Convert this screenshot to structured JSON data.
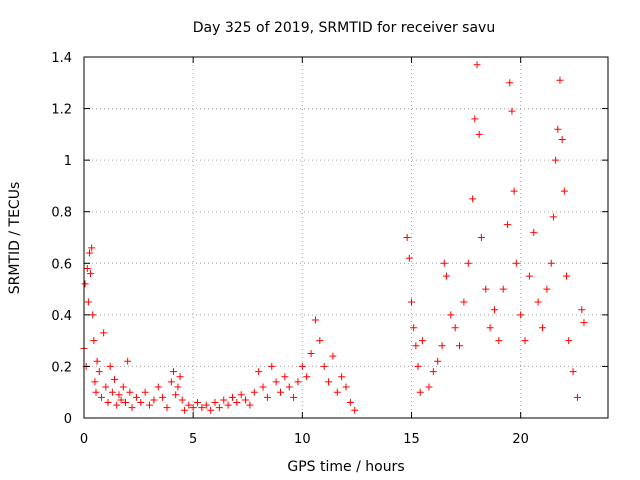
{
  "chart_data": {
    "type": "scatter",
    "title": "Day 325 of 2019, SRMTID for receiver savu",
    "xlabel": "GPS time / hours",
    "ylabel": "SRMTID / TECUs",
    "xlim": [
      0,
      24
    ],
    "ylim": [
      0,
      1.4
    ],
    "xticks": [
      0,
      5,
      10,
      15,
      20
    ],
    "xtick_labels": [
      "0",
      "5",
      "10",
      "15",
      "20"
    ],
    "yticks": [
      0,
      0.2,
      0.4,
      0.6,
      0.8,
      1.0,
      1.2,
      1.4
    ],
    "ytick_labels": [
      "0",
      "0.2",
      "0.4",
      "0.6",
      "0.8",
      "1",
      "1.2",
      "1.4"
    ],
    "grid": true,
    "marker": "+",
    "series": [
      {
        "name": "SRMTID",
        "color": "#ff0000",
        "points": [
          [
            0.0,
            0.27
          ],
          [
            0.05,
            0.52
          ],
          [
            0.1,
            0.2
          ],
          [
            0.15,
            0.58
          ],
          [
            0.2,
            0.45
          ],
          [
            0.25,
            0.64
          ],
          [
            0.3,
            0.56
          ],
          [
            0.35,
            0.66
          ],
          [
            0.4,
            0.4
          ],
          [
            0.45,
            0.3
          ],
          [
            0.5,
            0.14
          ],
          [
            0.55,
            0.1
          ],
          [
            0.6,
            0.22
          ],
          [
            0.7,
            0.18
          ],
          [
            0.8,
            0.08
          ],
          [
            0.9,
            0.33
          ],
          [
            1.0,
            0.12
          ],
          [
            1.1,
            0.06
          ],
          [
            1.2,
            0.2
          ],
          [
            1.3,
            0.1
          ],
          [
            1.4,
            0.15
          ],
          [
            1.5,
            0.05
          ],
          [
            1.6,
            0.09
          ],
          [
            1.7,
            0.07
          ],
          [
            1.8,
            0.12
          ],
          [
            1.9,
            0.06
          ],
          [
            2.0,
            0.22
          ],
          [
            2.1,
            0.1
          ],
          [
            2.2,
            0.04
          ],
          [
            2.4,
            0.08
          ],
          [
            2.6,
            0.06
          ],
          [
            2.8,
            0.1
          ],
          [
            3.0,
            0.05
          ],
          [
            3.2,
            0.07
          ],
          [
            3.4,
            0.12
          ],
          [
            3.6,
            0.08
          ],
          [
            3.8,
            0.04
          ],
          [
            4.0,
            0.14
          ],
          [
            4.1,
            0.18
          ],
          [
            4.2,
            0.09
          ],
          [
            4.3,
            0.12
          ],
          [
            4.4,
            0.16
          ],
          [
            4.5,
            0.07
          ],
          [
            4.6,
            0.03
          ],
          [
            4.8,
            0.05
          ],
          [
            5.0,
            0.04
          ],
          [
            5.2,
            0.06
          ],
          [
            5.4,
            0.04
          ],
          [
            5.6,
            0.05
          ],
          [
            5.8,
            0.03
          ],
          [
            6.0,
            0.06
          ],
          [
            6.2,
            0.04
          ],
          [
            6.4,
            0.07
          ],
          [
            6.6,
            0.05
          ],
          [
            6.8,
            0.08
          ],
          [
            7.0,
            0.06
          ],
          [
            7.2,
            0.09
          ],
          [
            7.4,
            0.07
          ],
          [
            7.6,
            0.05
          ],
          [
            7.8,
            0.1
          ],
          [
            8.0,
            0.18
          ],
          [
            8.2,
            0.12
          ],
          [
            8.4,
            0.08
          ],
          [
            8.6,
            0.2
          ],
          [
            8.8,
            0.14
          ],
          [
            9.0,
            0.1
          ],
          [
            9.2,
            0.16
          ],
          [
            9.4,
            0.12
          ],
          [
            9.6,
            0.08
          ],
          [
            9.8,
            0.14
          ],
          [
            10.0,
            0.2
          ],
          [
            10.2,
            0.16
          ],
          [
            10.4,
            0.25
          ],
          [
            10.6,
            0.38
          ],
          [
            10.8,
            0.3
          ],
          [
            11.0,
            0.2
          ],
          [
            11.2,
            0.14
          ],
          [
            11.4,
            0.24
          ],
          [
            11.6,
            0.1
          ],
          [
            11.8,
            0.16
          ],
          [
            12.0,
            0.12
          ],
          [
            12.2,
            0.06
          ],
          [
            12.4,
            0.03
          ],
          [
            14.8,
            0.7
          ],
          [
            14.9,
            0.62
          ],
          [
            15.0,
            0.45
          ],
          [
            15.1,
            0.35
          ],
          [
            15.2,
            0.28
          ],
          [
            15.3,
            0.2
          ],
          [
            15.4,
            0.1
          ],
          [
            15.5,
            0.3
          ],
          [
            15.8,
            0.12
          ],
          [
            16.0,
            0.18
          ],
          [
            16.2,
            0.22
          ],
          [
            16.4,
            0.28
          ],
          [
            16.5,
            0.6
          ],
          [
            16.6,
            0.55
          ],
          [
            16.8,
            0.4
          ],
          [
            17.0,
            0.35
          ],
          [
            17.2,
            0.28
          ],
          [
            17.4,
            0.45
          ],
          [
            17.6,
            0.6
          ],
          [
            17.8,
            0.85
          ],
          [
            17.9,
            1.16
          ],
          [
            18.0,
            1.37
          ],
          [
            18.1,
            1.1
          ],
          [
            18.2,
            0.7
          ],
          [
            18.4,
            0.5
          ],
          [
            18.6,
            0.35
          ],
          [
            18.8,
            0.42
          ],
          [
            19.0,
            0.3
          ],
          [
            19.2,
            0.5
          ],
          [
            19.4,
            0.75
          ],
          [
            19.5,
            1.3
          ],
          [
            19.6,
            1.19
          ],
          [
            19.7,
            0.88
          ],
          [
            19.8,
            0.6
          ],
          [
            20.0,
            0.4
          ],
          [
            20.2,
            0.3
          ],
          [
            20.4,
            0.55
          ],
          [
            20.6,
            0.72
          ],
          [
            20.8,
            0.45
          ],
          [
            21.0,
            0.35
          ],
          [
            21.2,
            0.5
          ],
          [
            21.4,
            0.6
          ],
          [
            21.5,
            0.78
          ],
          [
            21.6,
            1.0
          ],
          [
            21.7,
            1.12
          ],
          [
            21.8,
            1.31
          ],
          [
            21.9,
            1.08
          ],
          [
            22.0,
            0.88
          ],
          [
            22.1,
            0.55
          ],
          [
            22.2,
            0.3
          ],
          [
            22.4,
            0.18
          ],
          [
            22.6,
            0.08
          ],
          [
            22.8,
            0.42
          ],
          [
            22.9,
            0.37
          ]
        ]
      }
    ]
  }
}
